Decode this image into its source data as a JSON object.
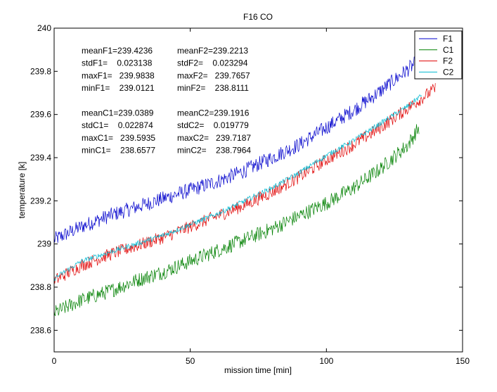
{
  "chart_data": {
    "type": "line",
    "title": "F16 CO",
    "xlabel": "mission time [min]",
    "ylabel": "temperature [k]",
    "xlim": [
      0,
      150
    ],
    "ylim": [
      238.5,
      240
    ],
    "x_ticks": [
      0,
      50,
      100,
      150
    ],
    "x_tick_labels": [
      "0",
      "50",
      "100",
      "150"
    ],
    "y_ticks": [
      238.6,
      238.8,
      239,
      239.2,
      239.4,
      239.6,
      239.8,
      240
    ],
    "y_tick_labels": [
      "238.6",
      "238.8",
      "239",
      "239.2",
      "239.4",
      "239.6",
      "239.8",
      "240"
    ],
    "grid": false,
    "legend_position": "top-right",
    "series": [
      {
        "name": "F1",
        "color": "#0000cc",
        "x": [
          0,
          10,
          20,
          30,
          40,
          50,
          60,
          70,
          80,
          90,
          100,
          110,
          120,
          130,
          134
        ],
        "values": [
          239.02,
          239.08,
          239.13,
          239.17,
          239.21,
          239.25,
          239.29,
          239.34,
          239.4,
          239.46,
          239.54,
          239.62,
          239.71,
          239.81,
          239.85
        ],
        "noise": 0.035
      },
      {
        "name": "C1",
        "color": "#008000",
        "x": [
          0,
          10,
          20,
          30,
          40,
          50,
          60,
          70,
          80,
          90,
          100,
          110,
          120,
          130,
          134
        ],
        "values": [
          238.68,
          238.74,
          238.78,
          238.83,
          238.87,
          238.92,
          238.97,
          239.02,
          239.07,
          239.13,
          239.19,
          239.26,
          239.35,
          239.46,
          239.54
        ],
        "noise": 0.035
      },
      {
        "name": "F2",
        "color": "#e00000",
        "x": [
          0,
          10,
          20,
          30,
          40,
          50,
          60,
          70,
          80,
          90,
          100,
          110,
          120,
          130,
          140
        ],
        "values": [
          238.83,
          238.9,
          238.95,
          238.99,
          239.03,
          239.08,
          239.13,
          239.18,
          239.24,
          239.31,
          239.39,
          239.46,
          239.54,
          239.63,
          239.72
        ],
        "noise": 0.03
      },
      {
        "name": "C2",
        "color": "#00b8d0",
        "x": [
          0,
          10,
          20,
          30,
          40,
          50,
          60,
          70,
          80,
          90,
          100,
          110,
          120,
          130,
          135
        ],
        "values": [
          238.84,
          238.92,
          238.96,
          239.0,
          239.04,
          239.09,
          239.14,
          239.2,
          239.26,
          239.33,
          239.41,
          239.48,
          239.56,
          239.64,
          239.69
        ],
        "noise": 0.012
      }
    ],
    "annotations": [
      [
        "meanF1=239.4236",
        "meanF2=239.2213"
      ],
      [
        "stdF1=    0.023138",
        "stdF2=    0.023294"
      ],
      [
        "maxF1=   239.9838",
        "maxF2=   239.7657"
      ],
      [
        "minF1=    239.0121",
        "minF2=    238.8111"
      ],
      [
        "",
        ""
      ],
      [
        "meanC1=239.0389",
        "meanC2=239.1916"
      ],
      [
        "stdC1=    0.022874",
        "stdC2=    0.019779"
      ],
      [
        "maxC1=   239.5935",
        "maxC2=   239.7187"
      ],
      [
        "minC1=    238.6577",
        "minC2=    238.7964"
      ]
    ]
  }
}
